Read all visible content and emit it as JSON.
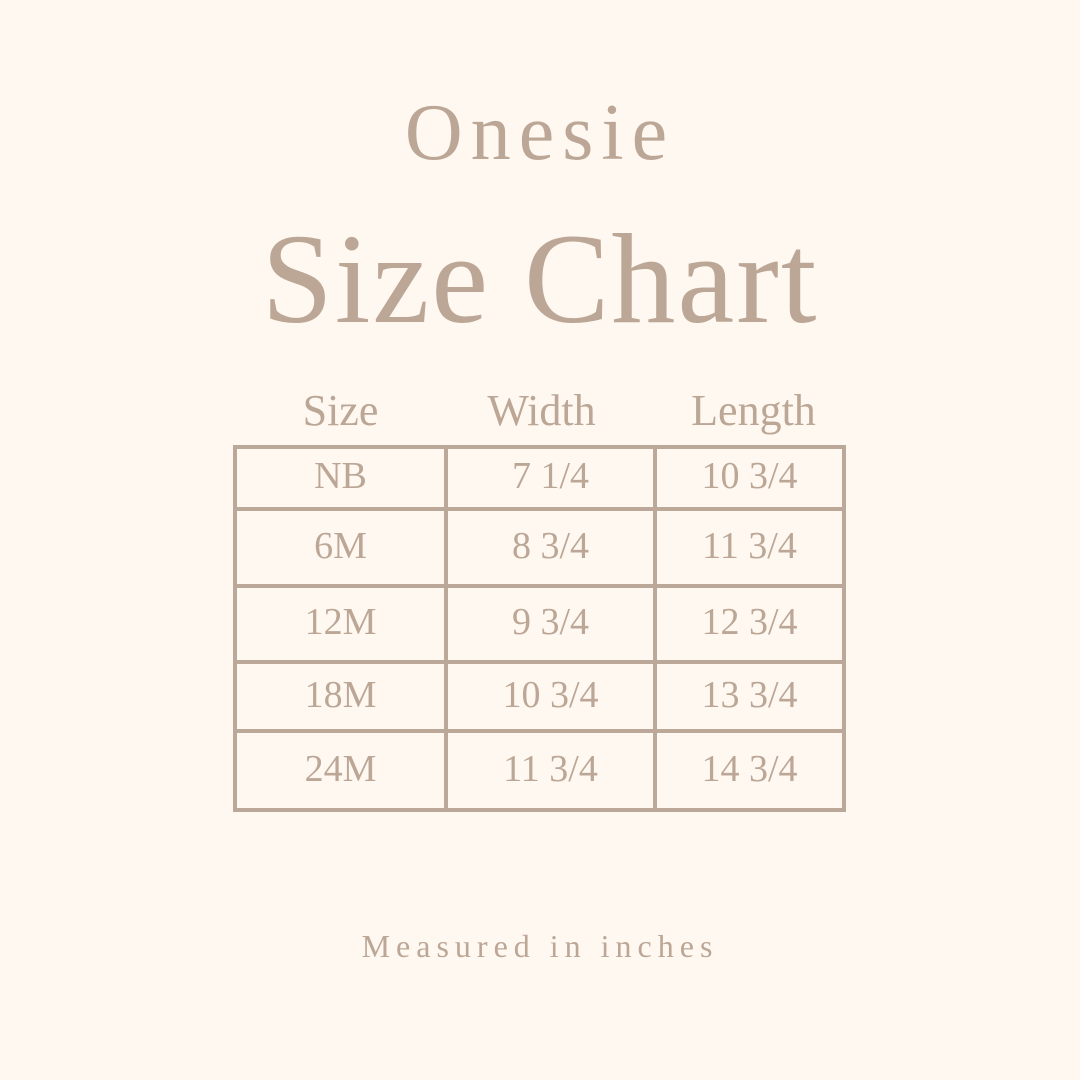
{
  "title_line1": "Onesie",
  "title_line2": "Size Chart",
  "table": {
    "headers": [
      "Size",
      "Width",
      "Length"
    ],
    "rows": [
      [
        "NB",
        "7 1/4",
        "10 3/4"
      ],
      [
        "6M",
        "8 3/4",
        "11 3/4"
      ],
      [
        "12M",
        "9 3/4",
        "12 3/4"
      ],
      [
        "18M",
        "10 3/4",
        "13 3/4"
      ],
      [
        "24M",
        "11 3/4",
        "14 3/4"
      ]
    ]
  },
  "footer": "Measured in inches",
  "colors": {
    "background": "#fef8f1",
    "text": "#bca796",
    "lines": "#bca898"
  }
}
